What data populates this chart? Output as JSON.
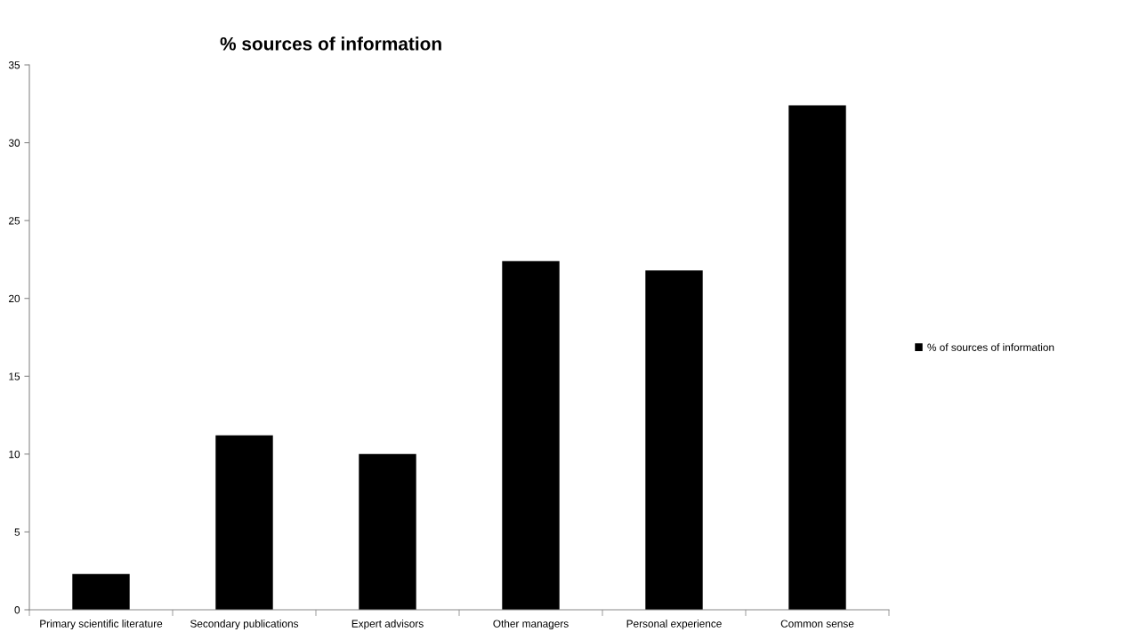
{
  "chart_data": {
    "type": "bar",
    "title": "% sources of information",
    "categories": [
      "Primary scientific literature",
      "Secondary publications",
      "Expert advisors",
      "Other managers",
      "Personal experience",
      "Common sense"
    ],
    "series": [
      {
        "name": "% of sources of information",
        "color": "#000000",
        "values": [
          2.3,
          11.2,
          10.0,
          22.4,
          21.8,
          32.4
        ]
      }
    ],
    "ylim": [
      0,
      35
    ],
    "yticks": [
      0,
      5,
      10,
      15,
      20,
      25,
      30,
      35
    ],
    "grid": false,
    "legend": "right"
  }
}
